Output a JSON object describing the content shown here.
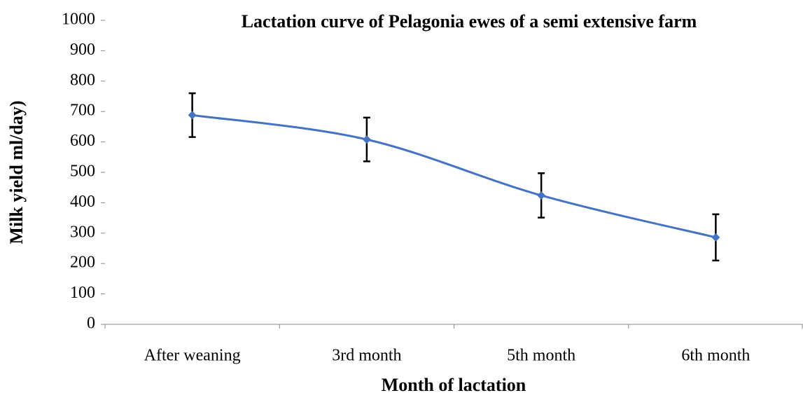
{
  "chart_data": {
    "type": "line",
    "title": "Lactation curve of Pelagonia ewes  of a semi extensive farm",
    "x_label": "Month of lactation",
    "y_label": "Milk yield ml/day)",
    "categories": [
      "After weaning",
      "3rd month",
      "5th month",
      "6th month"
    ],
    "series": [
      {
        "name": "Milk yield",
        "color": "#4472c4",
        "values": [
          688,
          608,
          424,
          286
        ],
        "errors": [
          72,
          72,
          73,
          76
        ]
      }
    ],
    "ylim": [
      0,
      1000
    ],
    "yticks": [
      0,
      100,
      200,
      300,
      400,
      500,
      600,
      700,
      800,
      900,
      1000
    ],
    "smooth": true
  }
}
